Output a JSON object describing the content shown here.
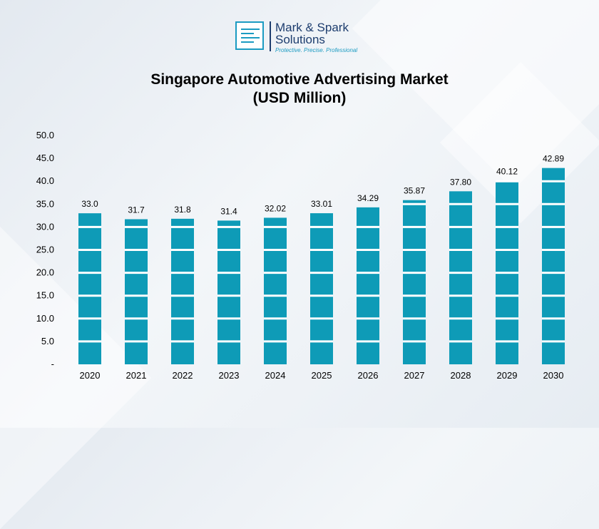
{
  "brand": {
    "name_line1": "Mark & Spark",
    "name_line2": "Solutions",
    "tagline": "Protective. Precise. Professional"
  },
  "chart_data": {
    "type": "bar",
    "title_line1": "Singapore Automotive Advertising Market",
    "title_line2": "(USD Million)",
    "categories": [
      "2020",
      "2021",
      "2022",
      "2023",
      "2024",
      "2025",
      "2026",
      "2027",
      "2028",
      "2029",
      "2030"
    ],
    "values": [
      33.0,
      31.7,
      31.8,
      31.4,
      32.02,
      33.01,
      34.29,
      35.87,
      37.8,
      40.12,
      42.89
    ],
    "value_labels": [
      "33.0",
      "31.7",
      "31.8",
      "31.4",
      "32.02",
      "33.01",
      "34.29",
      "35.87",
      "37.80",
      "40.12",
      "42.89"
    ],
    "ylim": [
      0,
      50
    ],
    "yticks": [
      "-",
      "5.0",
      "10.0",
      "15.0",
      "20.0",
      "25.0",
      "30.0",
      "35.0",
      "40.0",
      "45.0",
      "50.0"
    ],
    "bar_color": "#0e9bb7",
    "grid": false
  }
}
